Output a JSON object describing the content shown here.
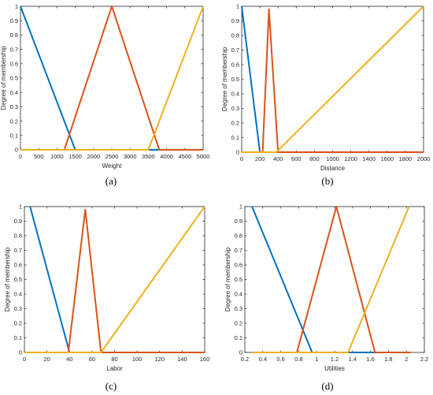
{
  "colors": {
    "blue": "#0072BD",
    "orange": "#D95319",
    "yellow": "#EDB120",
    "axis": "#262626"
  },
  "panels": [
    {
      "caption": "(a)"
    },
    {
      "caption": "(b)"
    },
    {
      "caption": "(c)"
    },
    {
      "caption": "(d)"
    }
  ],
  "chart_data": [
    {
      "type": "line",
      "xlabel": "Weight",
      "ylabel": "Degree of membership",
      "xlim": [
        0,
        5000
      ],
      "ylim": [
        0,
        1
      ],
      "xticks": [
        0,
        500,
        1000,
        1500,
        2000,
        2500,
        3000,
        3500,
        4000,
        4500,
        5000
      ],
      "yticks": [
        0,
        0.1,
        0.2,
        0.3,
        0.4,
        0.5,
        0.6,
        0.7,
        0.8,
        0.9,
        1
      ],
      "series": [
        {
          "color": "#0072BD",
          "x": [
            0,
            1500,
            5000
          ],
          "y": [
            1,
            0,
            0
          ]
        },
        {
          "color": "#D95319",
          "x": [
            0,
            1200,
            2500,
            3800,
            5000
          ],
          "y": [
            0,
            0,
            1,
            0,
            0
          ]
        },
        {
          "color": "#EDB120",
          "x": [
            0,
            3500,
            5000
          ],
          "y": [
            0,
            0,
            1
          ]
        }
      ]
    },
    {
      "type": "line",
      "xlabel": "Distance",
      "ylabel": "Degree of membership",
      "xlim": [
        0,
        2000
      ],
      "ylim": [
        0,
        1
      ],
      "xticks": [
        0,
        200,
        400,
        600,
        800,
        1000,
        1200,
        1400,
        1600,
        1800,
        2000
      ],
      "yticks": [
        0,
        0.1,
        0.2,
        0.3,
        0.4,
        0.5,
        0.6,
        0.7,
        0.8,
        0.9,
        1
      ],
      "series": [
        {
          "color": "#0072BD",
          "x": [
            0,
            200,
            2000
          ],
          "y": [
            1,
            0,
            0
          ]
        },
        {
          "color": "#D95319",
          "x": [
            0,
            230,
            300,
            400,
            2000
          ],
          "y": [
            0,
            0,
            0.98,
            0,
            0
          ]
        },
        {
          "color": "#EDB120",
          "x": [
            0,
            380,
            2000
          ],
          "y": [
            0,
            0,
            1
          ]
        }
      ]
    },
    {
      "type": "line",
      "xlabel": "Labor",
      "ylabel": "Degree of membership",
      "xlim": [
        0,
        160
      ],
      "ylim": [
        0,
        1
      ],
      "xticks": [
        0,
        20,
        40,
        60,
        80,
        100,
        120,
        140,
        160
      ],
      "yticks": [
        0,
        0.1,
        0.2,
        0.3,
        0.4,
        0.5,
        0.6,
        0.7,
        0.8,
        0.9,
        1
      ],
      "series": [
        {
          "color": "#0072BD",
          "x": [
            5,
            40,
            160
          ],
          "y": [
            1,
            0,
            0
          ]
        },
        {
          "color": "#D95319",
          "x": [
            0,
            39,
            54,
            68,
            160
          ],
          "y": [
            0,
            0,
            0.98,
            0,
            0
          ]
        },
        {
          "color": "#EDB120",
          "x": [
            0,
            68,
            160
          ],
          "y": [
            0,
            0,
            1
          ]
        }
      ]
    },
    {
      "type": "line",
      "xlabel": "Utilities",
      "ylabel": "Degree of membership",
      "xlim": [
        0.2,
        2.2
      ],
      "ylim": [
        0,
        1
      ],
      "xticks": [
        0.2,
        0.4,
        0.6,
        0.8,
        1,
        1.2,
        1.4,
        1.6,
        1.8,
        2,
        2.2
      ],
      "yticks": [
        0,
        0.1,
        0.2,
        0.3,
        0.4,
        0.5,
        0.6,
        0.7,
        0.8,
        0.9,
        1
      ],
      "series": [
        {
          "color": "#0072BD",
          "x": [
            0.28,
            0.95,
            1.65
          ],
          "y": [
            1,
            0,
            0
          ]
        },
        {
          "color": "#D95319",
          "x": [
            0.28,
            0.78,
            1.22,
            1.65,
            2.05
          ],
          "y": [
            0,
            0,
            1,
            0,
            0
          ]
        },
        {
          "color": "#EDB120",
          "x": [
            0.28,
            1.35,
            2.03
          ],
          "y": [
            0,
            0,
            1
          ]
        }
      ]
    }
  ]
}
